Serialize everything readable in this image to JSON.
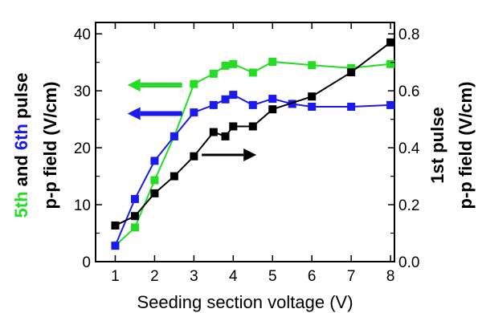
{
  "chart_data": {
    "type": "line",
    "xlabel": "Seeding section voltage (V)",
    "x_ticks": [
      1,
      2,
      3,
      4,
      5,
      6,
      7,
      8
    ],
    "xlim": [
      0.5,
      8.1
    ],
    "left_axis": {
      "label_parts": [
        {
          "text": "5th",
          "color": "#22dd22"
        },
        {
          "text": " and ",
          "color": "#000000"
        },
        {
          "text": "6th",
          "color": "#1a1aee"
        },
        {
          "text": " pulse",
          "color": "#000000"
        }
      ],
      "label_line2": "p-p field (V/cm)",
      "ylim": [
        0,
        42
      ],
      "ticks": [
        "0",
        "10",
        "20",
        "30",
        "40"
      ],
      "tick_values": [
        0,
        10,
        20,
        30,
        40
      ]
    },
    "right_axis": {
      "label_line1": "1st pulse",
      "label_line2": "p-p field (V/cm)",
      "ylim": [
        0,
        0.84
      ],
      "ticks": [
        "0.0",
        "0.2",
        "0.4",
        "0.6",
        "0.8"
      ],
      "tick_values": [
        0.0,
        0.2,
        0.4,
        0.6,
        0.8
      ]
    },
    "series": [
      {
        "axis": "left",
        "color": "#22dd22",
        "x": [
          1,
          1.5,
          2,
          2.5,
          3,
          3.5,
          3.8,
          4,
          4.5,
          5,
          6,
          7,
          8
        ],
        "y": [
          2.8,
          6.0,
          14.3,
          22.0,
          31.2,
          33.0,
          34.4,
          34.7,
          33.2,
          35.1,
          34.5,
          34.0,
          34.7
        ],
        "arrow_direction": "left",
        "arrow_at": {
          "x": 2.7,
          "y": 31.0
        }
      },
      {
        "axis": "left",
        "color": "#1a1aee",
        "x": [
          1,
          1.5,
          2,
          2.5,
          3,
          3.5,
          3.8,
          4,
          4.5,
          5,
          5.5,
          6,
          7,
          8
        ],
        "y": [
          2.8,
          11.0,
          17.7,
          22.0,
          26.2,
          27.5,
          28.5,
          29.3,
          27.5,
          28.6,
          27.7,
          27.2,
          27.2,
          27.5
        ],
        "arrow_direction": "left",
        "arrow_at": {
          "x": 2.7,
          "y": 26.0
        }
      },
      {
        "axis": "right",
        "color": "#000000",
        "x": [
          1,
          1.5,
          2,
          2.5,
          3,
          3.5,
          3.8,
          4,
          4.5,
          5,
          6,
          7,
          8
        ],
        "y": [
          0.127,
          0.16,
          0.24,
          0.3,
          0.37,
          0.455,
          0.44,
          0.475,
          0.475,
          0.535,
          0.58,
          0.665,
          0.77
        ],
        "arrow_direction": "right",
        "arrow_at": {
          "x": 3.2,
          "y": 0.375
        }
      }
    ]
  }
}
